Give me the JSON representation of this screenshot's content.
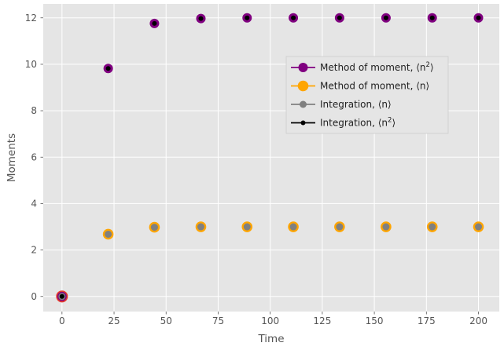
{
  "chart_data": {
    "type": "scatter",
    "xlabel": "Time",
    "ylabel": "Moments",
    "xlim": [
      -9,
      210
    ],
    "ylim": [
      -0.65,
      12.6
    ],
    "xticks": [
      0,
      25,
      50,
      75,
      100,
      125,
      150,
      175,
      200
    ],
    "yticks": [
      0,
      2,
      4,
      6,
      8,
      10,
      12
    ],
    "grid": true,
    "legend_position": "right, upper-middle",
    "x": [
      0,
      22.2,
      44.4,
      66.7,
      88.9,
      111.1,
      133.3,
      155.6,
      177.8,
      200
    ],
    "series": [
      {
        "name": "Method of moment, ⟨n²⟩",
        "label_main": "Method of moment, ⟨n",
        "label_sup": "2",
        "label_tail": "⟩",
        "color": "#800080",
        "marker": "circle-large",
        "values": [
          0,
          9.82,
          11.76,
          11.97,
          12.0,
          12.0,
          12.0,
          12.0,
          12.0,
          12.0
        ]
      },
      {
        "name": "Method of moment, ⟨n⟩",
        "label_main": "Method of moment, ⟨n⟩",
        "label_sup": "",
        "label_tail": "",
        "color": "#FFA500",
        "marker": "circle-xlarge",
        "values": [
          0,
          2.68,
          2.98,
          3.0,
          3.0,
          3.0,
          3.0,
          3.0,
          3.0,
          3.0
        ]
      },
      {
        "name": "Integration, ⟨n⟩",
        "label_main": "Integration, ⟨n⟩",
        "label_sup": "",
        "label_tail": "",
        "color": "#808080",
        "marker": "circle-medium",
        "values": [
          0,
          2.68,
          2.98,
          3.0,
          3.0,
          3.0,
          3.0,
          3.0,
          3.0,
          3.0
        ]
      },
      {
        "name": "Integration, ⟨n²⟩",
        "label_main": "Integration, ⟨n",
        "label_sup": "2",
        "label_tail": "⟩",
        "color": "#000000",
        "marker": "circle-small",
        "values": [
          0,
          9.82,
          11.76,
          11.97,
          12.0,
          12.0,
          12.0,
          12.0,
          12.0,
          12.0
        ]
      }
    ],
    "origin_point_ring_color": "#E8392A"
  }
}
